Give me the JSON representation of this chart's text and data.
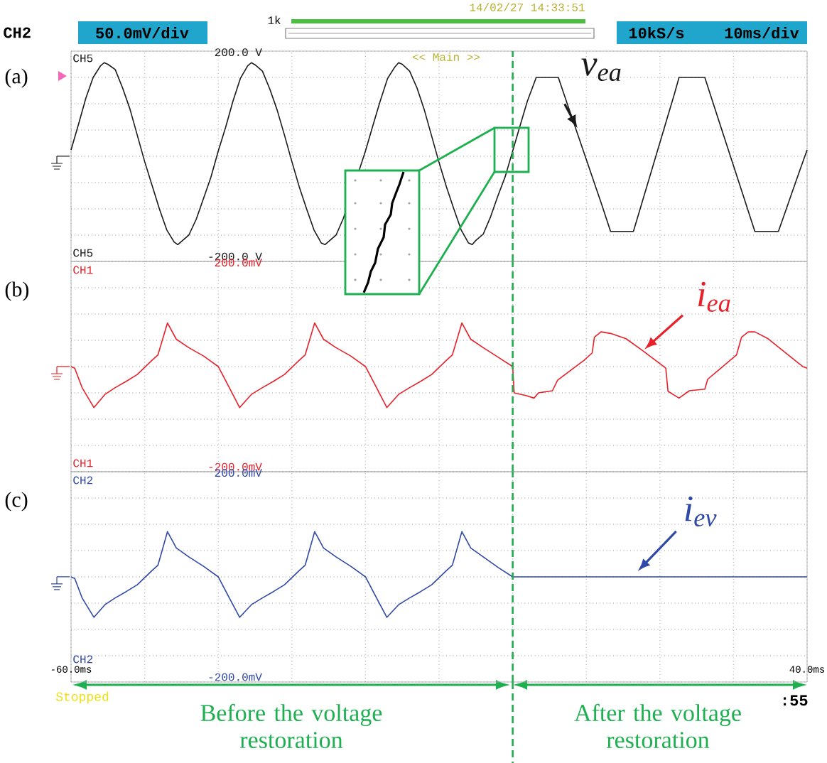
{
  "chart_data": [
    {
      "type": "line",
      "xlim": [
        -60,
        40
      ],
      "ylim": [
        -200,
        200
      ],
      "grid": true,
      "tick_labels": "y",
      "xticks": [
        {
          "value": -60,
          "label": null
        },
        {
          "value": -50,
          "label": null
        },
        {
          "value": -40,
          "label": null
        },
        {
          "value": -30,
          "label": null
        },
        {
          "value": -20,
          "label": null
        },
        {
          "value": -10,
          "label": null
        },
        {
          "value": 0,
          "label": null
        },
        {
          "value": 10,
          "label": null
        },
        {
          "value": 20,
          "label": null
        },
        {
          "value": 30,
          "label": null
        },
        {
          "value": 40,
          "label": null
        }
      ],
      "yticks": [
        {
          "value": -200,
          "label": "-200.0 V"
        },
        {
          "value": -150,
          "label": null
        },
        {
          "value": -100,
          "label": null
        },
        {
          "value": -50,
          "label": null
        },
        {
          "value": 0,
          "label": null
        },
        {
          "value": 50,
          "label": null
        },
        {
          "value": 100,
          "label": null
        },
        {
          "value": 150,
          "label": null
        },
        {
          "value": 200,
          "label": "200.0 V"
        }
      ],
      "series": [
        {
          "color": "#1a1a1a",
          "x": [
            -60,
            -59,
            -58,
            -57,
            -56,
            -55.5,
            -55,
            -54,
            -53,
            -52,
            -51,
            -50,
            -49,
            -48,
            -47,
            -46,
            -45.5,
            -45,
            -44,
            -43,
            -42,
            -41,
            -40,
            -39,
            -38,
            -37,
            -36,
            -35.5,
            -35,
            -34,
            -33,
            -32,
            -31,
            -30,
            -29,
            -28,
            -27,
            -26,
            -25.5,
            -25,
            -24,
            -23,
            -22,
            -21,
            -20,
            -19,
            -18,
            -17,
            -16,
            -15.5,
            -15,
            -14,
            -13,
            -12,
            -11,
            -10,
            -9,
            -8,
            -7,
            -6,
            -5.5,
            -5,
            -4,
            -3,
            -2,
            -1,
            0,
            1,
            2,
            3.2,
            6.2,
            7,
            8,
            9,
            10,
            11,
            12,
            13.3,
            16.4,
            17,
            18,
            19,
            20,
            21,
            22,
            22.6,
            26.1,
            27,
            28,
            29,
            30,
            31,
            32,
            32.9,
            36.1,
            37,
            38,
            39,
            40
          ],
          "values": [
            12,
            60,
            110,
            150,
            172,
            178,
            175,
            165,
            130,
            90,
            40,
            -10,
            -55,
            -100,
            -140,
            -163,
            -168,
            -162,
            -150,
            -120,
            -80,
            -40,
            10,
            55,
            105,
            148,
            172,
            178,
            174,
            162,
            128,
            88,
            40,
            -10,
            -58,
            -100,
            -140,
            -165,
            -168,
            -162,
            -150,
            -118,
            null,
            null,
            10,
            58,
            105,
            148,
            170,
            178,
            175,
            162,
            130,
            88,
            38,
            -12,
            -58,
            -100,
            -140,
            -165,
            -168,
            -160,
            -148,
            -115,
            -75,
            -38,
            10,
            58,
            105,
            150,
            150,
            117,
            76,
            35,
            -6,
            -47,
            -88,
            -143,
            -143,
            -115,
            -68,
            -21,
            26,
            73,
            120,
            150,
            150,
            111,
            68,
            25,
            -18,
            -61,
            -104,
            -143,
            -143,
            -107,
            -67,
            -27,
            12
          ]
        }
      ],
      "ref_lines": [
        {
          "axis": "x",
          "value": 0,
          "color": "#1eb050",
          "line_style": "dashed"
        }
      ],
      "annotations": [
        "CH2",
        "50.0mV/div",
        "1k",
        "14/02/27 14:33:51",
        "10kS/s",
        "10ms/div",
        "<< Main >>",
        "CH5",
        "CH5",
        "(a)",
        {
          "text": "v$_{ea}$",
          "x": 8.6,
          "y": 51
        }
      ]
    },
    {
      "type": "line",
      "xlim": [
        -60,
        40
      ],
      "ylim": [
        -200,
        200
      ],
      "grid": true,
      "tick_labels": "y",
      "xticks": [
        {
          "value": -60,
          "label": null
        },
        {
          "value": -50,
          "label": null
        },
        {
          "value": -40,
          "label": null
        },
        {
          "value": -30,
          "label": null
        },
        {
          "value": -20,
          "label": null
        },
        {
          "value": -10,
          "label": null
        },
        {
          "value": 0,
          "label": null
        },
        {
          "value": 10,
          "label": null
        },
        {
          "value": 20,
          "label": null
        },
        {
          "value": 30,
          "label": null
        },
        {
          "value": 40,
          "label": null
        }
      ],
      "yticks": [
        {
          "value": -200,
          "label": "-200.0mV"
        },
        {
          "value": -150,
          "label": null
        },
        {
          "value": -100,
          "label": null
        },
        {
          "value": -50,
          "label": null
        },
        {
          "value": 0,
          "label": null
        },
        {
          "value": 50,
          "label": null
        },
        {
          "value": 100,
          "label": null
        },
        {
          "value": 150,
          "label": null
        },
        {
          "value": 200,
          "label": "200.0mV"
        }
      ],
      "series": [
        {
          "color": "#e8202a",
          "x": [
            -60,
            -59.5,
            -58.5,
            -56.9,
            -55.4,
            -54,
            -52.5,
            -51,
            -49,
            -48.2,
            -46.9,
            -45.7,
            -44,
            -42,
            -40,
            -38.5,
            -37.1,
            -35.5,
            -34,
            -32.5,
            -31,
            -29,
            -28.2,
            -26.9,
            -25.7,
            -24,
            -22,
            -20,
            -18.5,
            -17.1,
            -15.5,
            -14,
            -12.5,
            -11,
            -9,
            -8.2,
            -6.9,
            -5.7,
            -4,
            -2,
            0,
            0.2,
            1.8,
            2.9,
            3.5,
            5.4,
            6.1,
            9.7,
            10.8,
            11.1,
            12,
            13.3,
            15.4,
            17.6,
            20.8,
            21.1,
            22.6,
            24,
            26.1,
            26.5,
            30.4,
            31.1,
            32,
            32.9,
            34.7,
            39.4,
            40
          ],
          "values": [
            0,
            -3,
            -40,
            -78,
            -53,
            -40,
            -28,
            -15,
            12,
            22,
            83,
            52,
            36,
            20,
            0,
            -40,
            -78,
            -53,
            -40,
            -28,
            -15,
            12,
            22,
            83,
            52,
            36,
            20,
            0,
            -40,
            -78,
            -53,
            -40,
            -28,
            -15,
            12,
            22,
            83,
            52,
            36,
            18,
            0,
            -50,
            -55,
            -60,
            -50,
            -46,
            -26,
            12,
            26,
            56,
            66,
            63,
            53,
            31,
            -3,
            -47,
            -60,
            -46,
            -43,
            -24,
            22,
            56,
            66,
            66,
            53,
            0,
            -3
          ]
        }
      ],
      "ref_lines": [
        {
          "axis": "x",
          "value": 0,
          "color": "#1eb050",
          "line_style": "dashed"
        }
      ],
      "annotations": [
        "CH1",
        "CH1",
        "(b)",
        {
          "text": "i$_{ea}$",
          "x": 17.7,
          "y": 30
        }
      ]
    },
    {
      "type": "line",
      "xlim": [
        -60,
        40
      ],
      "ylim": [
        -200,
        200
      ],
      "grid": true,
      "xticks": [
        {
          "value": -60,
          "label": "-60.0ms"
        },
        {
          "value": -50,
          "label": null
        },
        {
          "value": -40,
          "label": null
        },
        {
          "value": -30,
          "label": null
        },
        {
          "value": -20,
          "label": null
        },
        {
          "value": -10,
          "label": null
        },
        {
          "value": 0,
          "label": null
        },
        {
          "value": 10,
          "label": null
        },
        {
          "value": 20,
          "label": null
        },
        {
          "value": 30,
          "label": null
        },
        {
          "value": 40,
          "label": "40.0ms"
        }
      ],
      "yticks": [
        {
          "value": -200,
          "label": "-200.0mV"
        },
        {
          "value": -150,
          "label": null
        },
        {
          "value": -100,
          "label": null
        },
        {
          "value": -50,
          "label": null
        },
        {
          "value": 0,
          "label": null
        },
        {
          "value": 50,
          "label": null
        },
        {
          "value": 100,
          "label": null
        },
        {
          "value": 150,
          "label": null
        },
        {
          "value": 200,
          "label": "200.0mV"
        }
      ],
      "series": [
        {
          "color": "#3048a8",
          "x": [
            -60,
            -59.5,
            -58.5,
            -56.9,
            -55.4,
            -54,
            -52.5,
            -51,
            -49,
            -48.2,
            -46.9,
            -45.7,
            -44,
            -42,
            -40,
            -38.5,
            -37.1,
            -35.5,
            -34,
            -32.5,
            -31,
            -29,
            -28.2,
            -26.9,
            -25.7,
            -24,
            -22,
            -20,
            -18.5,
            -17.1,
            -15.5,
            -14,
            -12.5,
            -11,
            -9,
            -8.2,
            -6.9,
            -5.7,
            -4,
            -2,
            0,
            20,
            40
          ],
          "values": [
            0,
            -3,
            -40,
            -77,
            -53,
            -40,
            -28,
            -15,
            12,
            22,
            86,
            55,
            38,
            20,
            0,
            -40,
            -77,
            -53,
            -40,
            -28,
            -15,
            12,
            22,
            86,
            55,
            38,
            20,
            0,
            -40,
            -77,
            -53,
            -40,
            -28,
            -15,
            12,
            22,
            86,
            55,
            38,
            18,
            0,
            0,
            0
          ]
        }
      ],
      "ref_lines": [
        {
          "axis": "x",
          "value": 0,
          "color": "#1eb050",
          "line_style": "dashed"
        }
      ],
      "annotations": [
        "CH2",
        "CH2",
        "(c)",
        {
          "text": "i$_{ev}$",
          "x": 16.8,
          "y": 0
        },
        "Before the voltage restoration",
        "After the voltage restoration",
        "Stopped",
        ":55"
      ]
    }
  ]
}
